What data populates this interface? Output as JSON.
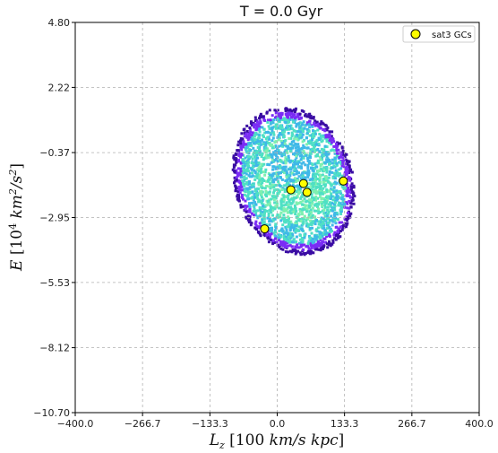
{
  "chart_data": {
    "type": "scatter",
    "title": "T = 0.0 Gyr",
    "xlabel": "Lz [100 km/s kpc]",
    "ylabel": "E [10^4 km^2/s^2]",
    "xlim": [
      -400.0,
      400.0
    ],
    "ylim": [
      -10.7,
      4.8
    ],
    "x_ticks": [
      "−400.0",
      "−266.7",
      "−133.3",
      "0.0",
      "133.3",
      "266.7",
      "400.0"
    ],
    "x_tick_values": [
      -400.0,
      -266.7,
      -133.3,
      0.0,
      133.3,
      266.7,
      400.0
    ],
    "y_ticks": [
      "4.80",
      "2.22",
      "−0.37",
      "−2.95",
      "−5.53",
      "−8.12",
      "−10.70"
    ],
    "y_tick_values": [
      4.8,
      2.22,
      -0.37,
      -2.95,
      -5.53,
      -8.12,
      -10.7
    ],
    "grid": true,
    "legend_position": "top-right",
    "density": {
      "description_units": "data",
      "center": [
        30,
        -1.45
      ],
      "colormap": [
        "#3a0ca3",
        "#7b2cf5",
        "#3fb8e8",
        "#4fe0c4",
        "#7ff0b0"
      ]
    },
    "series": [
      {
        "name": "sat3 GCs",
        "color": "#ffff00",
        "edge_color": "#000000",
        "x": [
          -25,
          27,
          52,
          59,
          131
        ],
        "y": [
          -3.4,
          -1.85,
          -1.6,
          -1.95,
          -1.5
        ]
      }
    ]
  }
}
